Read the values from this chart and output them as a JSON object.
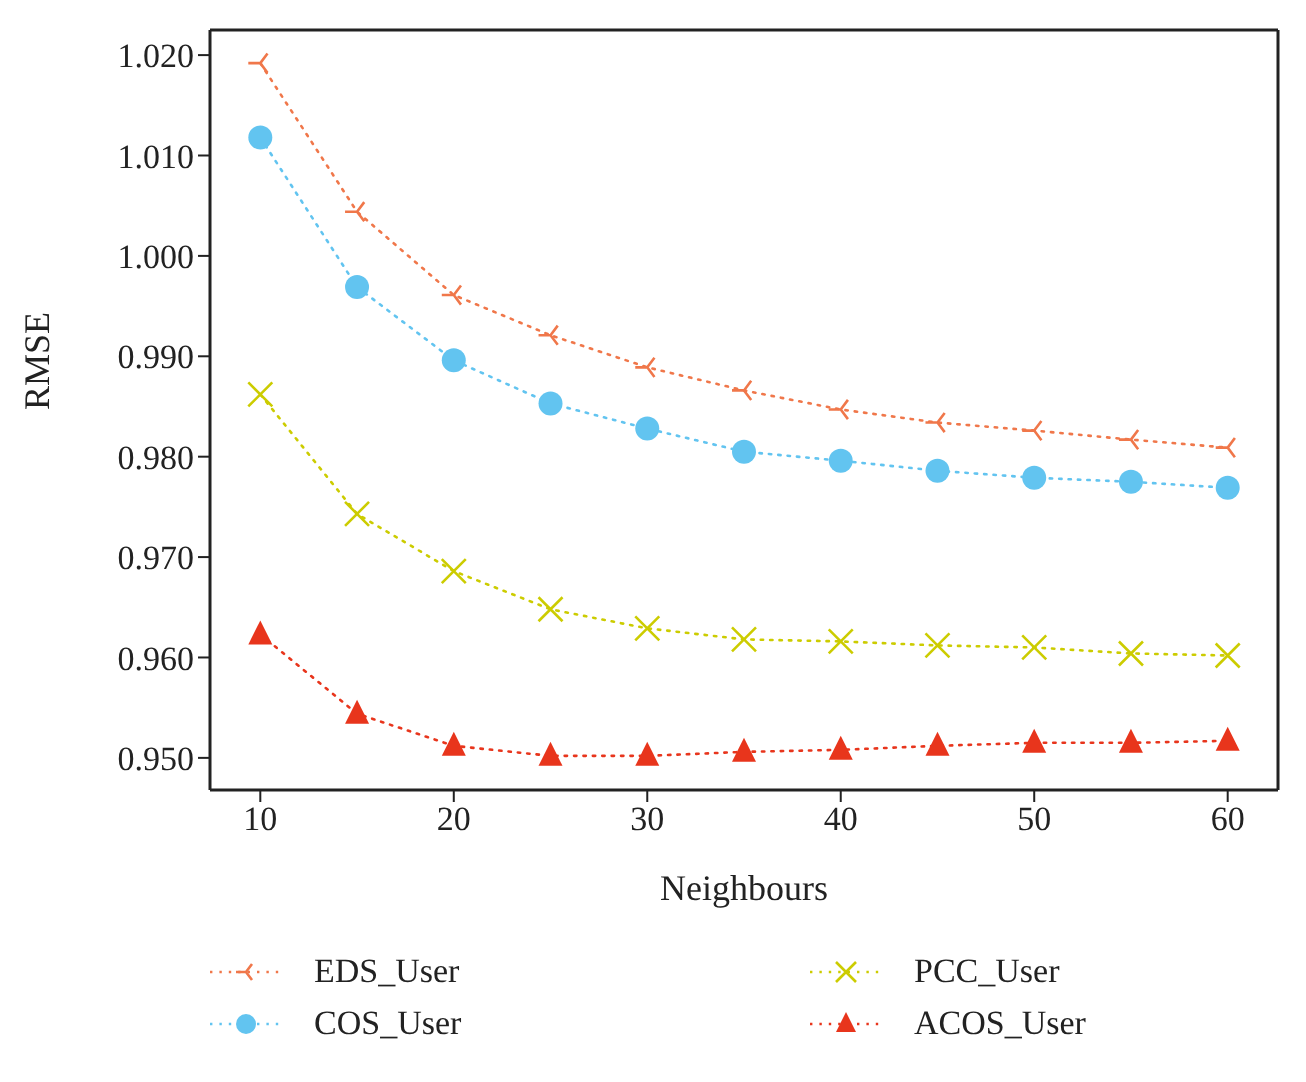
{
  "chart_data": {
    "type": "line",
    "xlabel": "Neighbours",
    "ylabel": "RMSE",
    "x": [
      10,
      15,
      20,
      25,
      30,
      35,
      40,
      45,
      50,
      55,
      60
    ],
    "series": [
      {
        "name": "EDS_User",
        "color": "#f0774a",
        "marker": "cross",
        "values": [
          1.0192,
          1.0044,
          0.9961,
          0.9921,
          0.9889,
          0.9866,
          0.9847,
          0.9834,
          0.9826,
          0.9817,
          0.9809
        ]
      },
      {
        "name": "COS_User",
        "color": "#62c4f0",
        "marker": "circle",
        "values": [
          1.0118,
          0.9969,
          0.9896,
          0.9853,
          0.9828,
          0.9805,
          0.9796,
          0.9786,
          0.9779,
          0.9775,
          0.9769
        ]
      },
      {
        "name": "PCC_User",
        "color": "#cccc00",
        "marker": "cross",
        "values": [
          0.9862,
          0.9743,
          0.9686,
          0.9648,
          0.9629,
          0.9618,
          0.9616,
          0.9612,
          0.961,
          0.9604,
          0.9602
        ]
      },
      {
        "name": "ACOS_User",
        "color": "#e8351c",
        "marker": "triangle",
        "values": [
          0.9623,
          0.9544,
          0.9512,
          0.9502,
          0.9502,
          0.9506,
          0.9508,
          0.9512,
          0.9515,
          0.9515,
          0.9517
        ]
      }
    ],
    "xlim": [
      7.4,
      62.6
    ],
    "xticks": [
      10,
      20,
      30,
      40,
      50,
      60
    ],
    "ylim": [
      0.9468,
      1.0225
    ],
    "yticks": [
      {
        "value": 0.95,
        "label": "0.950"
      },
      {
        "value": 0.96,
        "label": "0.960"
      },
      {
        "value": 0.97,
        "label": "0.970"
      },
      {
        "value": 0.98,
        "label": "0.980"
      },
      {
        "value": 0.99,
        "label": "0.990"
      },
      {
        "value": 1.0,
        "label": "1.000"
      },
      {
        "value": 1.01,
        "label": "1.010"
      },
      {
        "value": 1.02,
        "label": "1.020"
      }
    ],
    "line_style": "dotted",
    "grid": false,
    "legend": "bottom"
  }
}
